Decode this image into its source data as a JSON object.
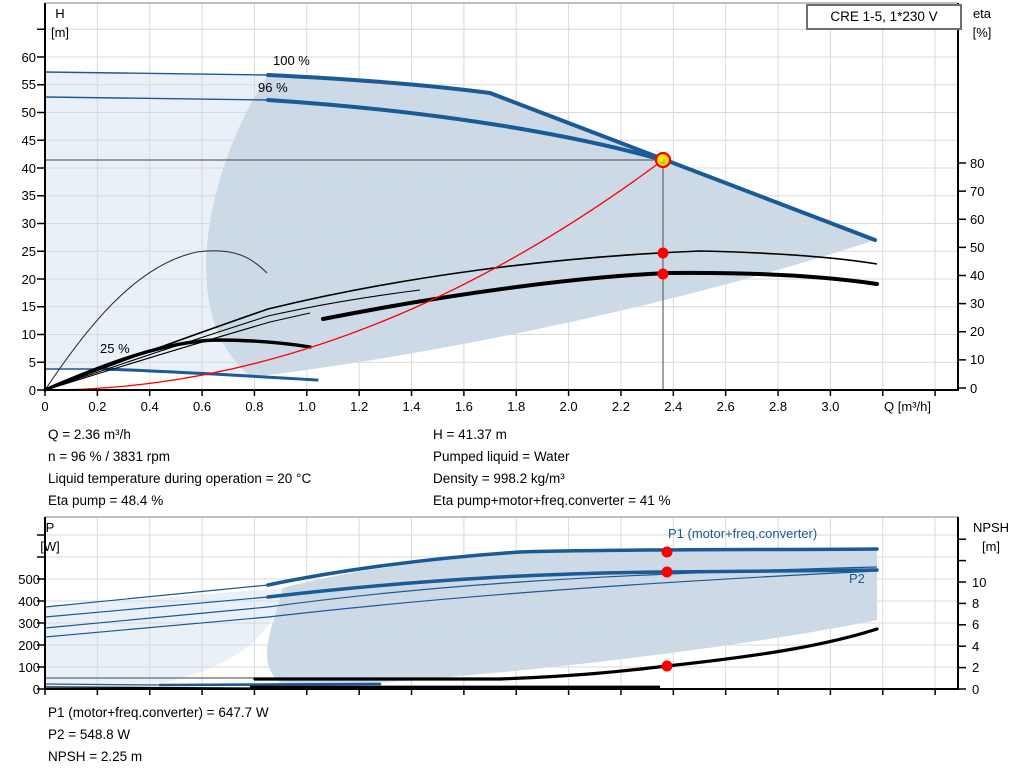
{
  "title_box": "CRE 1-5, 1*230 V",
  "colors": {
    "curve_blue": "#1a5a96",
    "fill_light": "#e9f0f8",
    "fill_dark": "#ccd9e6",
    "duty_red": "#ff0000",
    "duty_yellow": "#ffe600"
  },
  "top_chart": {
    "y_left_title": "H",
    "y_left_unit": "[m]",
    "y_right_title": "eta",
    "y_right_unit": "[%]",
    "x_title": "Q [m³/h]",
    "h_ticks": [
      "60",
      "55",
      "50",
      "45",
      "40",
      "35",
      "30",
      "25",
      "20",
      "15",
      "10",
      "5",
      "0"
    ],
    "eta_ticks": [
      "80",
      "70",
      "60",
      "50",
      "40",
      "30",
      "20",
      "10",
      "0"
    ],
    "q_ticks": [
      "0",
      "0.2",
      "0.4",
      "0.6",
      "0.8",
      "1.0",
      "1.2",
      "1.4",
      "1.6",
      "1.8",
      "2.0",
      "2.2",
      "2.4",
      "2.6",
      "2.8",
      "3.0"
    ],
    "curve_labels": {
      "speed_100": "100 %",
      "speed_96": "96 %",
      "speed_25": "25 %"
    }
  },
  "bottom_chart": {
    "y_left_title": "P",
    "y_left_unit": "[W]",
    "y_right_title": "NPSH",
    "y_right_unit": "[m]",
    "p_ticks": [
      "500",
      "400",
      "300",
      "200",
      "100",
      "0"
    ],
    "npsh_ticks": [
      "10",
      "8",
      "6",
      "4",
      "2",
      "0"
    ],
    "curve_labels": {
      "p1": "P1 (motor+freq.converter)",
      "p2": "P2"
    }
  },
  "readout": {
    "q": "Q = 2.36 m³/h",
    "n": "n = 96 % / 3831 rpm",
    "liquid_temp": "Liquid temperature during operation = 20 °C",
    "eta_pump": "Eta pump = 48.4 %",
    "h": "H = 41.37 m",
    "pumped_liquid": "Pumped liquid = Water",
    "density": "Density = 998.2 kg/m³",
    "eta_total": "Eta pump+motor+freq.converter = 41 %",
    "p1": "P1 (motor+freq.converter) = 647.7 W",
    "p2": "P2 = 548.8 W",
    "npsh": "NPSH = 2.25 m"
  },
  "chart_data": [
    {
      "type": "line",
      "title": "CRE 1-5, 1*230 V",
      "xlabel": "Q [m³/h]",
      "ylabel": "H [m]",
      "ylabel_right": "eta [%]",
      "xlim": [
        0,
        3.49
      ],
      "ylim": [
        0,
        69
      ],
      "ylim_right": [
        0,
        80
      ],
      "grid": true,
      "series": [
        {
          "name": "pump curve 100 %",
          "axis": "H",
          "points": [
            [
              0.0,
              57.2
            ],
            [
              0.85,
              56.6
            ],
            [
              1.2,
              55.6
            ],
            [
              1.7,
              53.4
            ],
            [
              2.36,
              41.6
            ],
            [
              3.17,
              27.0
            ]
          ]
        },
        {
          "name": "pump curve 96 %",
          "axis": "H",
          "points": [
            [
              0.0,
              52.6
            ],
            [
              0.85,
              52.2
            ],
            [
              1.5,
              49.8
            ],
            [
              2.0,
              46.2
            ],
            [
              2.36,
              41.37
            ]
          ]
        },
        {
          "name": "pump curve 25 %",
          "axis": "H",
          "points": [
            [
              0.0,
              3.7
            ],
            [
              0.4,
              3.6
            ],
            [
              0.8,
              2.9
            ],
            [
              1.04,
              1.8
            ]
          ]
        },
        {
          "name": "eta pump",
          "axis": "eta",
          "points": [
            [
              0.85,
              28.8
            ],
            [
              1.5,
              39.0
            ],
            [
              2.0,
              46.0
            ],
            [
              2.36,
              48.4
            ],
            [
              2.7,
              49.0
            ],
            [
              3.17,
              44.8
            ]
          ]
        },
        {
          "name": "eta pump+motor+freq.converter",
          "axis": "eta",
          "points": [
            [
              1.0,
              24.5
            ],
            [
              1.5,
              33.0
            ],
            [
              2.0,
              39.0
            ],
            [
              2.36,
              41.0
            ],
            [
              3.17,
              37.7
            ]
          ]
        },
        {
          "name": "eta 25 %",
          "axis": "H",
          "points": [
            [
              0.0,
              0.0
            ],
            [
              0.35,
              7.5
            ],
            [
              0.62,
              8.8
            ],
            [
              1.0,
              7.8
            ]
          ]
        },
        {
          "name": "system curve (red)",
          "axis": "H",
          "points": [
            [
              0.0,
              0.0
            ],
            [
              1.0,
              7.4
            ],
            [
              1.5,
              16.7
            ],
            [
              2.0,
              29.7
            ],
            [
              2.36,
              41.37
            ]
          ]
        }
      ],
      "duty_point": {
        "Q": 2.36,
        "H": 41.37,
        "eta_pump": 48.4,
        "eta_total": 41.0
      }
    },
    {
      "type": "line",
      "xlabel": "Q [m³/h]",
      "ylabel": "P [W]",
      "ylabel_right": "NPSH [m]",
      "xlim": [
        0,
        3.49
      ],
      "ylim": [
        0,
        765
      ],
      "ylim_right": [
        0,
        15.7
      ],
      "grid": true,
      "series": [
        {
          "name": "P1 (motor+freq.converter)",
          "axis": "P",
          "points": [
            [
              0.0,
              372
            ],
            [
              0.85,
              477
            ],
            [
              1.5,
              600
            ],
            [
              2.36,
              647.7
            ],
            [
              3.17,
              636
            ]
          ]
        },
        {
          "name": "P2",
          "axis": "P",
          "points": [
            [
              0.0,
              327
            ],
            [
              0.85,
              418
            ],
            [
              1.5,
              505
            ],
            [
              2.36,
              548.8
            ],
            [
              3.17,
              541
            ]
          ]
        },
        {
          "name": "P1 96 %",
          "axis": "P",
          "points": [
            [
              0.0,
              277
            ],
            [
              0.85,
              377
            ],
            [
              3.17,
              550
            ]
          ]
        },
        {
          "name": "P2 96 %",
          "axis": "P",
          "points": [
            [
              0.0,
              236
            ],
            [
              0.85,
              332
            ],
            [
              3.17,
              532
            ]
          ]
        },
        {
          "name": "NPSH",
          "axis": "NPSH",
          "points": [
            [
              0.85,
              0.9
            ],
            [
              1.5,
              0.95
            ],
            [
              2.0,
              1.6
            ],
            [
              2.36,
              2.25
            ],
            [
              2.8,
              3.4
            ],
            [
              3.17,
              5.6
            ]
          ]
        }
      ],
      "duty_point": {
        "Q": 2.36,
        "P1": 647.7,
        "P2": 548.8,
        "NPSH": 2.25
      }
    }
  ]
}
